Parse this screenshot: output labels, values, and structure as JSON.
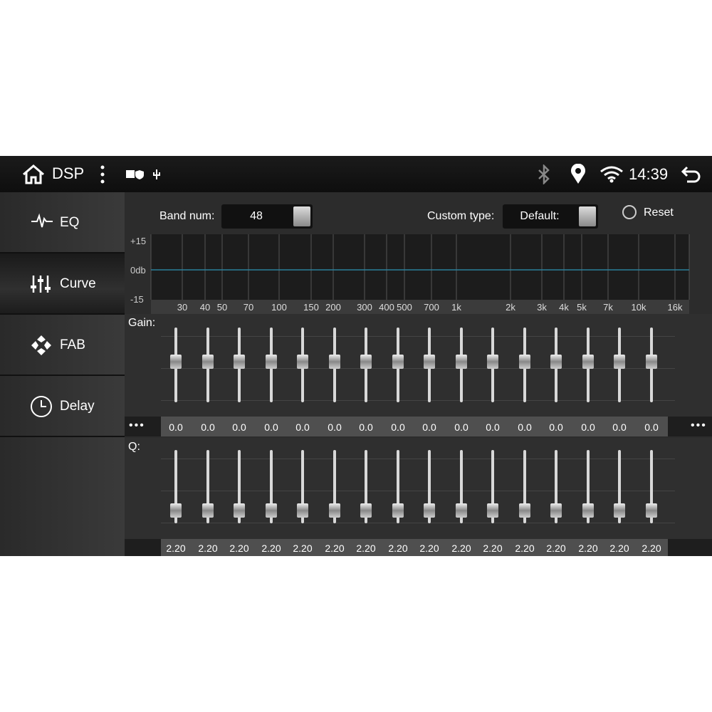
{
  "status_bar": {
    "title": "DSP",
    "time": "14:39"
  },
  "sidebar": {
    "items": [
      "EQ",
      "Curve",
      "FAB",
      "Delay"
    ],
    "selected": 1
  },
  "controls": {
    "band_num_label": "Band num:",
    "band_num_value": "48",
    "custom_type_label": "Custom type:",
    "custom_type_value": "Default:",
    "reset": "Reset"
  },
  "graph": {
    "y_labels": [
      "+15",
      "0db",
      "-15"
    ],
    "freq_labels": [
      "30",
      "40",
      "50",
      "70",
      "100",
      "150",
      "200",
      "300",
      "400",
      "500",
      "700",
      "1k",
      "2k",
      "3k",
      "4k",
      "5k",
      "7k",
      "10k",
      "16k"
    ]
  },
  "gain": {
    "label": "Gain:",
    "values": [
      "0.0",
      "0.0",
      "0.0",
      "0.0",
      "0.0",
      "0.0",
      "0.0",
      "0.0",
      "0.0",
      "0.0",
      "0.0",
      "0.0",
      "0.0",
      "0.0",
      "0.0",
      "0.0"
    ]
  },
  "q": {
    "label": "Q:",
    "values": [
      "2.20",
      "2.20",
      "2.20",
      "2.20",
      "2.20",
      "2.20",
      "2.20",
      "2.20",
      "2.20",
      "2.20",
      "2.20",
      "2.20",
      "2.20",
      "2.20",
      "2.20",
      "2.20"
    ]
  }
}
